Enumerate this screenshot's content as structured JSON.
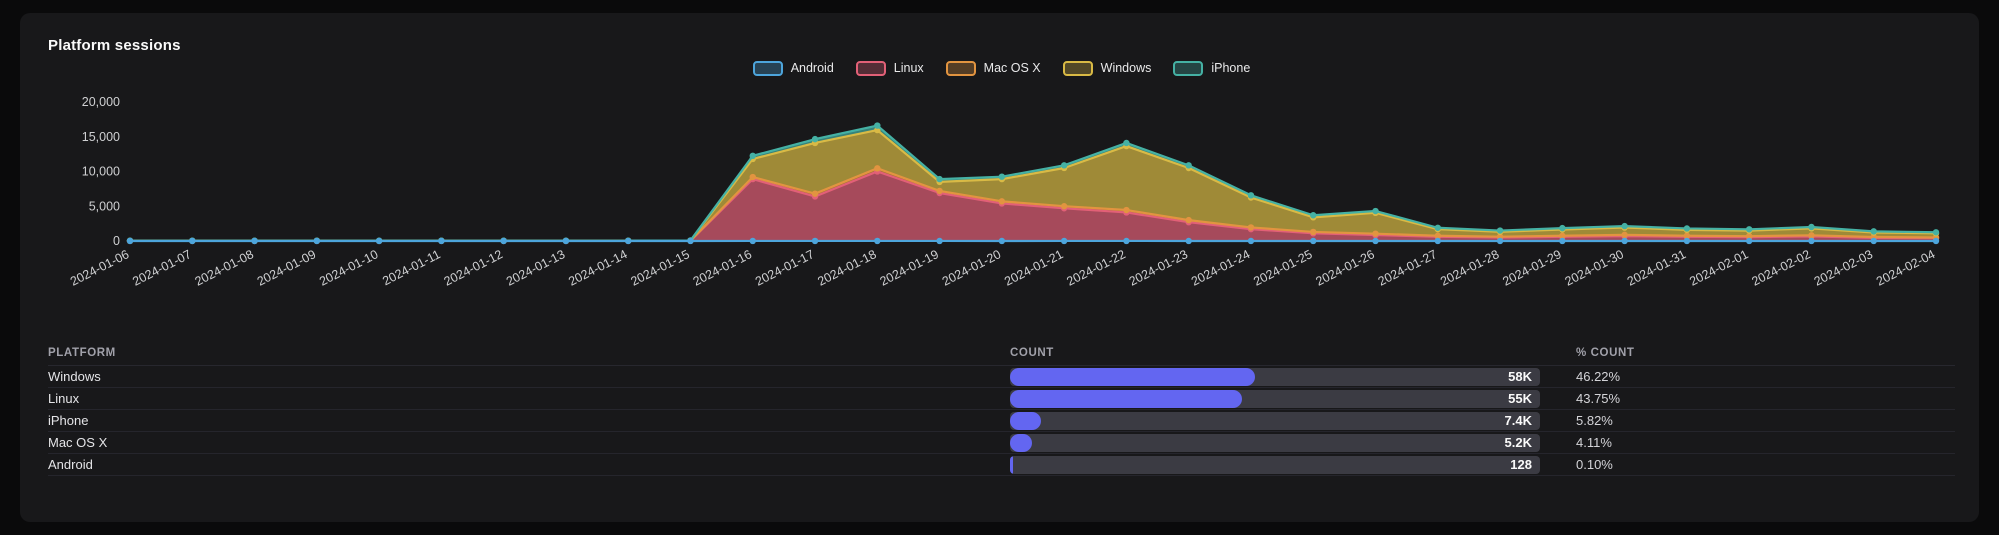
{
  "panel": {
    "title": "Platform sessions"
  },
  "chart_data": {
    "type": "area",
    "stacked": true,
    "grid": false,
    "legend_position": "top",
    "ylim": [
      0,
      20000
    ],
    "yticks": [
      0,
      5000,
      10000,
      15000,
      20000
    ],
    "x": [
      "2024-01-06",
      "2024-01-07",
      "2024-01-08",
      "2024-01-09",
      "2024-01-10",
      "2024-01-11",
      "2024-01-12",
      "2024-01-13",
      "2024-01-14",
      "2024-01-15",
      "2024-01-16",
      "2024-01-17",
      "2024-01-18",
      "2024-01-19",
      "2024-01-20",
      "2024-01-21",
      "2024-01-22",
      "2024-01-23",
      "2024-01-24",
      "2024-01-25",
      "2024-01-26",
      "2024-01-27",
      "2024-01-28",
      "2024-01-29",
      "2024-01-30",
      "2024-01-31",
      "2024-02-01",
      "2024-02-02",
      "2024-02-03",
      "2024-02-04"
    ],
    "series": [
      {
        "name": "Android",
        "color": "#4da5dc",
        "values": [
          5,
          4,
          4,
          5,
          4,
          5,
          4,
          4,
          5,
          4,
          6,
          8,
          8,
          6,
          5,
          6,
          6,
          5,
          5,
          4,
          4,
          4,
          4,
          4,
          5,
          4,
          4,
          5,
          4,
          4
        ]
      },
      {
        "name": "Linux",
        "color": "#e26077",
        "values": [
          10,
          10,
          10,
          10,
          10,
          10,
          10,
          10,
          10,
          20,
          8900,
          6400,
          10000,
          6900,
          5400,
          4700,
          4100,
          2700,
          1700,
          1100,
          850,
          600,
          500,
          600,
          700,
          600,
          550,
          650,
          450,
          400
        ]
      },
      {
        "name": "Mac OS X",
        "color": "#e29440",
        "values": [
          5,
          5,
          5,
          5,
          5,
          5,
          5,
          5,
          5,
          10,
          300,
          400,
          450,
          300,
          300,
          300,
          350,
          300,
          250,
          200,
          200,
          150,
          120,
          150,
          180,
          150,
          140,
          160,
          120,
          100
        ]
      },
      {
        "name": "Windows",
        "color": "#d9ba45",
        "values": [
          15,
          15,
          15,
          15,
          15,
          15,
          15,
          15,
          15,
          30,
          2600,
          7300,
          5500,
          1300,
          3200,
          5500,
          9200,
          7500,
          4300,
          2100,
          3000,
          950,
          700,
          900,
          1050,
          850,
          800,
          1000,
          650,
          600
        ]
      },
      {
        "name": "iPhone",
        "color": "#45b1a4",
        "values": [
          10,
          10,
          10,
          10,
          10,
          10,
          10,
          10,
          10,
          20,
          450,
          550,
          650,
          400,
          350,
          380,
          450,
          380,
          320,
          300,
          260,
          200,
          180,
          200,
          210,
          200,
          190,
          200,
          160,
          150
        ]
      }
    ]
  },
  "table": {
    "headers": [
      "Platform",
      "Count",
      "% Count"
    ],
    "bar_color": "#6366f1",
    "track_color": "#3b3b43",
    "rows": [
      {
        "platform": "Windows",
        "count": "58K",
        "pct": "46.22%",
        "bar": 46.22
      },
      {
        "platform": "Linux",
        "count": "55K",
        "pct": "43.75%",
        "bar": 43.75
      },
      {
        "platform": "iPhone",
        "count": "7.4K",
        "pct": "5.82%",
        "bar": 5.82
      },
      {
        "platform": "Mac OS X",
        "count": "5.2K",
        "pct": "4.11%",
        "bar": 4.11
      },
      {
        "platform": "Android",
        "count": "128",
        "pct": "0.10%",
        "bar": 0.1
      }
    ]
  }
}
